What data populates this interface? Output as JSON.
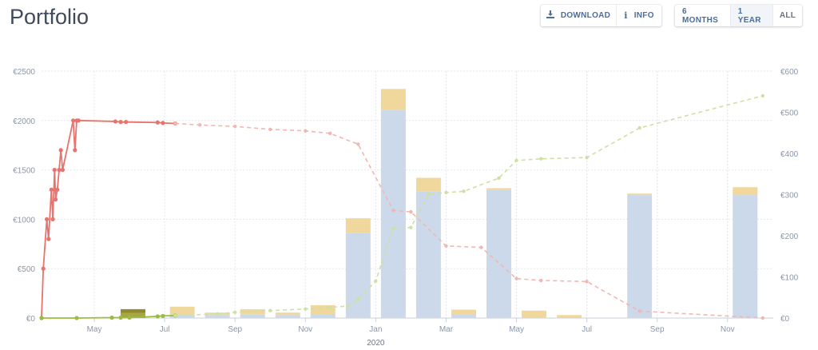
{
  "page": {
    "title": "Portfolio"
  },
  "toolbar": {
    "download_label": "DOWNLOAD",
    "info_label": "INFO",
    "range_options": [
      "6 MONTHS",
      "1 YEAR",
      "ALL"
    ],
    "active_range": "1 YEAR"
  },
  "chart_data": {
    "type": "bar",
    "title": "",
    "x_tick_labels": [
      "May",
      "Jul",
      "Sep",
      "Nov",
      "Jan",
      "Mar",
      "May",
      "Jul",
      "Sep",
      "Nov"
    ],
    "x_tick_months": [
      1,
      3,
      5,
      7,
      9,
      11,
      13,
      15,
      17,
      19
    ],
    "x_year_label": "2020",
    "x_year_month": 9,
    "xlim_months": [
      -0.5,
      20.3
    ],
    "y_left_ticks": [
      "€0",
      "€500",
      "€1000",
      "€1500",
      "€2000",
      "€2500"
    ],
    "y_left_lim": [
      0,
      2500
    ],
    "y_right_ticks": [
      "€0",
      "€100",
      "€200",
      "€300",
      "€400",
      "€500",
      "€600"
    ],
    "y_right_lim": [
      0,
      600
    ],
    "grid": true,
    "colors": {
      "bar_base": "#ccd9ea",
      "bar_top": "#f0d89c",
      "bar_dark": "#a9a640",
      "red_line": "#e8726c",
      "red_dashed": "#f2b6b3",
      "green_line": "#9cbc3c",
      "green_dashed": "#cfe0a4",
      "grid": "#e4e7eb",
      "axis_text": "#8a96a8"
    },
    "bars": [
      {
        "month": 2.1,
        "base": 50,
        "top": 40,
        "color": "dark"
      },
      {
        "month": 3.5,
        "base": 40,
        "top": 75
      },
      {
        "month": 4.5,
        "base": 30,
        "top": 25
      },
      {
        "month": 5.5,
        "base": 35,
        "top": 55
      },
      {
        "month": 6.5,
        "base": 30,
        "top": 25
      },
      {
        "month": 7.5,
        "base": 40,
        "top": 90
      },
      {
        "month": 8.5,
        "base": 860,
        "top": 150
      },
      {
        "month": 9.5,
        "base": 2110,
        "top": 210
      },
      {
        "month": 10.5,
        "base": 1280,
        "top": 140
      },
      {
        "month": 11.5,
        "base": 40,
        "top": 45
      },
      {
        "month": 12.5,
        "base": 1300,
        "top": 15
      },
      {
        "month": 13.5,
        "base": 0,
        "top": 75
      },
      {
        "month": 14.5,
        "base": 0,
        "top": 30
      },
      {
        "month": 16.5,
        "base": 1245,
        "top": 15
      },
      {
        "month": 19.5,
        "base": 1245,
        "top": 80
      }
    ],
    "series": [
      {
        "axis": "left",
        "color": "red_line",
        "style": "solid",
        "points": [
          [
            -0.5,
            0
          ],
          [
            -0.45,
            500
          ],
          [
            -0.35,
            1000
          ],
          [
            -0.3,
            800
          ],
          [
            -0.22,
            1300
          ],
          [
            -0.18,
            1000
          ],
          [
            -0.13,
            1500
          ],
          [
            -0.1,
            1200
          ],
          [
            -0.05,
            1300
          ],
          [
            0.0,
            1500
          ],
          [
            0.05,
            1700
          ],
          [
            0.1,
            1500
          ],
          [
            0.4,
            2000
          ],
          [
            0.45,
            1700
          ],
          [
            0.5,
            2000
          ],
          [
            0.55,
            2000
          ],
          [
            1.6,
            1990
          ],
          [
            1.75,
            1985
          ],
          [
            1.9,
            1985
          ],
          [
            2.8,
            1980
          ],
          [
            2.95,
            1975
          ],
          [
            3.3,
            1970
          ]
        ]
      },
      {
        "axis": "left",
        "color": "red_dashed",
        "style": "dashed",
        "points": [
          [
            3.3,
            1970
          ],
          [
            4.0,
            1955
          ],
          [
            5.0,
            1940
          ],
          [
            6.0,
            1910
          ],
          [
            7.0,
            1895
          ],
          [
            7.7,
            1870
          ],
          [
            8.5,
            1760
          ],
          [
            9.5,
            1090
          ],
          [
            10.0,
            1075
          ],
          [
            11.0,
            730
          ],
          [
            12.0,
            715
          ],
          [
            13.0,
            400
          ],
          [
            13.7,
            380
          ],
          [
            15.0,
            370
          ],
          [
            16.5,
            70
          ],
          [
            20.0,
            0
          ]
        ]
      },
      {
        "axis": "right",
        "color": "green_line",
        "style": "solid",
        "points": [
          [
            -0.5,
            0
          ],
          [
            0.5,
            0
          ],
          [
            1.5,
            1
          ],
          [
            1.75,
            1
          ],
          [
            2.0,
            1
          ],
          [
            2.8,
            4
          ],
          [
            2.95,
            5
          ],
          [
            3.3,
            6
          ]
        ]
      },
      {
        "axis": "right",
        "color": "green_dashed",
        "style": "dashed",
        "points": [
          [
            3.3,
            6
          ],
          [
            4.5,
            10
          ],
          [
            5.0,
            14
          ],
          [
            6.0,
            18
          ],
          [
            7.0,
            22
          ],
          [
            7.7,
            26
          ],
          [
            8.2,
            29
          ],
          [
            8.5,
            45
          ],
          [
            9.0,
            90
          ],
          [
            9.5,
            218
          ],
          [
            10.0,
            220
          ],
          [
            10.5,
            301
          ],
          [
            11.0,
            305
          ],
          [
            11.5,
            308
          ],
          [
            12.5,
            340
          ],
          [
            13.0,
            383
          ],
          [
            13.7,
            387
          ],
          [
            15.0,
            390
          ],
          [
            16.5,
            462
          ],
          [
            20.0,
            540
          ]
        ]
      }
    ]
  }
}
